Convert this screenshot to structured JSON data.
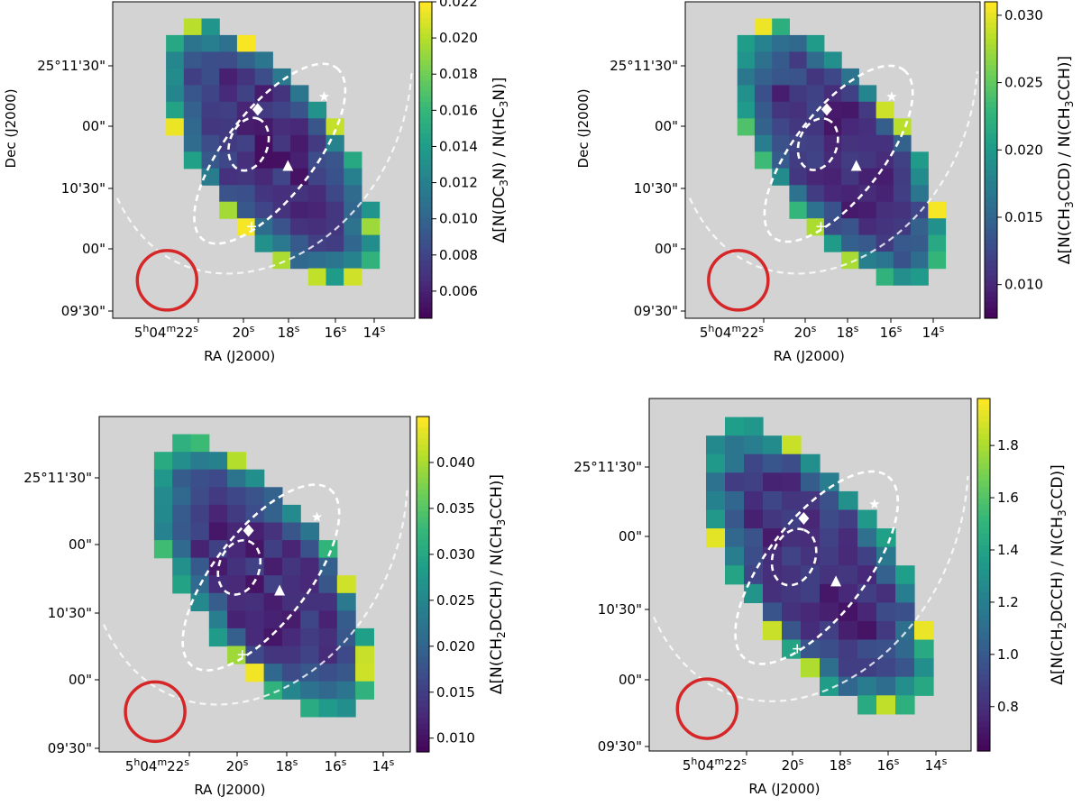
{
  "colors": {
    "background": "#d3d3d3",
    "contour": "#ffffff",
    "beam": "#d62728",
    "markers": "#ffffff",
    "viridis": [
      "#440154",
      "#482878",
      "#3e4989",
      "#31688e",
      "#26828e",
      "#1f9e89",
      "#35b779",
      "#6ece58",
      "#b5de2b",
      "#fde725"
    ]
  },
  "chart_data": [
    {
      "type": "heatmap",
      "title": "",
      "xlabel": "RA (J2000)",
      "ylabel": "Dec (J2000)",
      "xticks": [
        "5h04m22s",
        "20s",
        "18s",
        "16s",
        "14s"
      ],
      "yticks": [
        "25°11'30\"",
        "00\"",
        "10'30\"",
        "00\"",
        "09'30\""
      ],
      "colorbar_label": "Δ[N(DC3N) / N(HC3N)]",
      "colorbar_range": [
        0.0045,
        0.022
      ],
      "colorbar_ticks": [
        "0.022",
        "0.020",
        "0.018",
        "0.016",
        "0.014",
        "0.012",
        "0.010",
        "0.008",
        "0.006"
      ],
      "markers": [
        "star",
        "diamond",
        "triangle",
        "plus"
      ],
      "grid": false
    },
    {
      "type": "heatmap",
      "title": "",
      "xlabel": "RA (J2000)",
      "ylabel": "Dec (J2000)",
      "xticks": [
        "5h04m22s",
        "20s",
        "18s",
        "16s",
        "14s"
      ],
      "yticks": [
        "25°11'30\"",
        "00\"",
        "10'30\"",
        "00\"",
        "09'30\""
      ],
      "colorbar_label": "Δ[N(CH3CCD) / N(CH3CCH)]",
      "colorbar_range": [
        0.0075,
        0.031
      ],
      "colorbar_ticks": [
        "0.030",
        "0.025",
        "0.020",
        "0.015",
        "0.010"
      ],
      "markers": [
        "star",
        "diamond",
        "triangle",
        "plus"
      ],
      "grid": false
    },
    {
      "type": "heatmap",
      "title": "",
      "xlabel": "RA (J2000)",
      "ylabel": "",
      "xticks": [
        "5h04m22s",
        "20s",
        "18s",
        "16s",
        "14s"
      ],
      "yticks": [
        "25°11'30\"",
        "00\"",
        "10'30\"",
        "00\"",
        "09'30\""
      ],
      "colorbar_label": "Δ[N(CH2DCCH) / N(CH3CCH)]",
      "colorbar_range": [
        0.0085,
        0.045
      ],
      "colorbar_ticks": [
        "0.040",
        "0.035",
        "0.030",
        "0.025",
        "0.020",
        "0.015",
        "0.010"
      ],
      "markers": [
        "star",
        "diamond",
        "triangle",
        "plus"
      ],
      "grid": false
    },
    {
      "type": "heatmap",
      "title": "",
      "xlabel": "RA (J2000)",
      "ylabel": "",
      "xticks": [
        "5h04m22s",
        "20s",
        "18s",
        "16s",
        "14s"
      ],
      "yticks": [
        "25°11'30\"",
        "00\"",
        "10'30\"",
        "00\"",
        "09'30\""
      ],
      "colorbar_label": "Δ[N(CH2DCCH) / N(CH3CCD)]",
      "colorbar_range": [
        0.63,
        1.98
      ],
      "colorbar_ticks": [
        "1.8",
        "1.6",
        "1.4",
        "1.2",
        "1.0",
        "0.8"
      ],
      "markers": [
        "star",
        "diamond",
        "triangle",
        "plus"
      ],
      "grid": false
    }
  ]
}
